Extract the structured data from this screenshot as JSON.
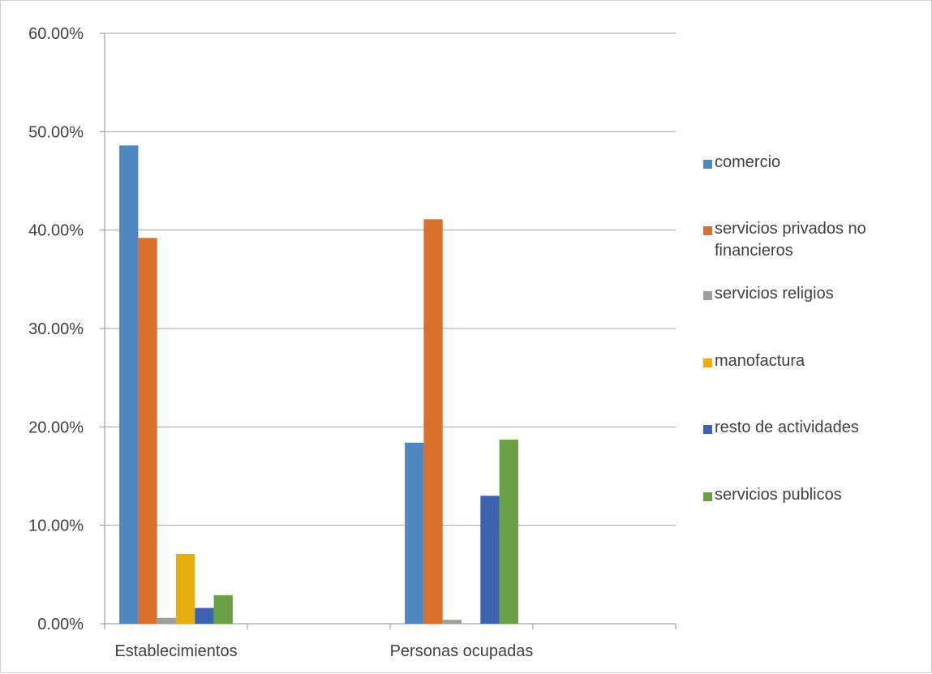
{
  "chart_data": {
    "type": "bar",
    "title": "",
    "xlabel": "",
    "ylabel": "",
    "categories": [
      "Establecimientos",
      "Personas ocupadas"
    ],
    "series": [
      {
        "name": "comercio",
        "color": "#4f87c0",
        "values": [
          48.6,
          18.4
        ]
      },
      {
        "name": "servicios privados no financieros",
        "color": "#d9702b",
        "values": [
          39.2,
          41.1
        ]
      },
      {
        "name": "servicios religios",
        "color": "#9e9e9e",
        "values": [
          0.6,
          0.4
        ]
      },
      {
        "name": "manofactura",
        "color": "#e6ae10",
        "values": [
          7.1,
          0.0
        ]
      },
      {
        "name": "resto de actividades",
        "color": "#3c62b0",
        "values": [
          1.6,
          13.0
        ]
      },
      {
        "name": "servicios publicos",
        "color": "#69a043",
        "values": [
          2.9,
          18.7
        ]
      }
    ],
    "y_ticks": [
      "0.00%",
      "10.00%",
      "20.00%",
      "30.00%",
      "40.00%",
      "50.00%",
      "60.00%"
    ],
    "ylim": [
      0,
      60
    ],
    "grid": true,
    "legend_position": "right"
  }
}
